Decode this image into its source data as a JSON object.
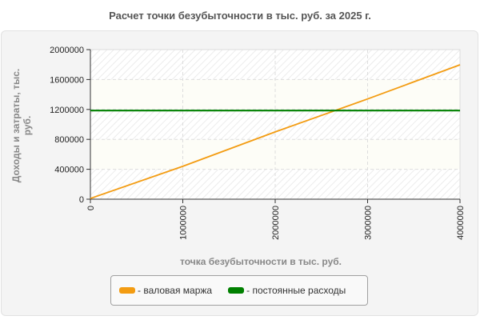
{
  "title": "Расчет точки безубыточности в  тыс. руб. за 2025 г.",
  "chart_data": {
    "type": "line",
    "title": "Расчет точки безубыточности в  тыс. руб. за 2025 г.",
    "xlabel": "точка безубыточности в тыс. руб.",
    "ylabel": "Доходы и затраты, тыс. руб.",
    "xlim": [
      0,
      4000000
    ],
    "ylim": [
      0,
      2000000
    ],
    "x_ticks": [
      "0",
      "1000000",
      "2000000",
      "3000000",
      "4000000"
    ],
    "y_ticks": [
      "0",
      "400000",
      "800000",
      "1200000",
      "1600000",
      "2000000"
    ],
    "grid": true,
    "legend_position": "bottom",
    "series": [
      {
        "name": "- валовая маржа",
        "color": "#f39c12",
        "x": [
          0,
          1000000,
          2000000,
          3000000,
          4000000
        ],
        "y": [
          10000,
          440000,
          900000,
          1340000,
          1797000
        ]
      },
      {
        "name": "- постоянные расходы",
        "color": "#008000",
        "x": [
          0,
          4000000
        ],
        "y": [
          1185000,
          1185000
        ]
      }
    ]
  },
  "legend": {
    "items": [
      {
        "label": "- валовая маржа",
        "color": "#f39c12"
      },
      {
        "label": "- постоянные расходы",
        "color": "#008000"
      }
    ]
  }
}
